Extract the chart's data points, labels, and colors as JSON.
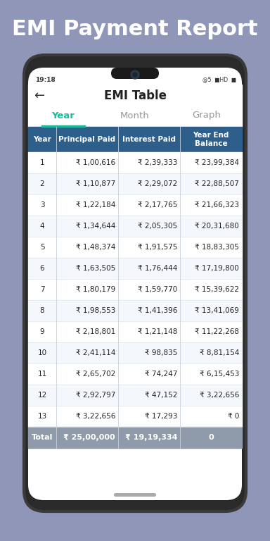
{
  "title": "EMI Payment Report",
  "title_color": "#ffffff",
  "title_fontsize": 22,
  "bg_color": "#9096b8",
  "status_bar_time": "19:18",
  "app_title": "EMI Table",
  "tabs": [
    "Year",
    "Month",
    "Graph"
  ],
  "active_tab": "Year",
  "active_tab_color": "#1abc9c",
  "inactive_tab_color": "#999999",
  "header_bg": "#2e5f8a",
  "header_text_color": "#ffffff",
  "header_labels": [
    "Year",
    "Principal Paid",
    "Interest Paid",
    "Year End\nBalance"
  ],
  "row_bg_even": "#ffffff",
  "row_bg_odd": "#f4f7fb",
  "row_text_color": "#222222",
  "total_bg": "#8f9baa",
  "total_text_color": "#ffffff",
  "table_data": [
    [
      "1",
      "₹ 1,00,616",
      "₹ 2,39,333",
      "₹ 23,99,384"
    ],
    [
      "2",
      "₹ 1,10,877",
      "₹ 2,29,072",
      "₹ 22,88,507"
    ],
    [
      "3",
      "₹ 1,22,184",
      "₹ 2,17,765",
      "₹ 21,66,323"
    ],
    [
      "4",
      "₹ 1,34,644",
      "₹ 2,05,305",
      "₹ 20,31,680"
    ],
    [
      "5",
      "₹ 1,48,374",
      "₹ 1,91,575",
      "₹ 18,83,305"
    ],
    [
      "6",
      "₹ 1,63,505",
      "₹ 1,76,444",
      "₹ 17,19,800"
    ],
    [
      "7",
      "₹ 1,80,179",
      "₹ 1,59,770",
      "₹ 15,39,622"
    ],
    [
      "8",
      "₹ 1,98,553",
      "₹ 1,41,396",
      "₹ 13,41,069"
    ],
    [
      "9",
      "₹ 2,18,801",
      "₹ 1,21,148",
      "₹ 11,22,268"
    ],
    [
      "10",
      "₹ 2,41,114",
      "₹ 98,835",
      "₹ 8,81,154"
    ],
    [
      "11",
      "₹ 2,65,702",
      "₹ 74,247",
      "₹ 6,15,453"
    ],
    [
      "12",
      "₹ 2,92,797",
      "₹ 47,152",
      "₹ 3,22,656"
    ],
    [
      "13",
      "₹ 3,22,656",
      "₹ 17,293",
      "₹ 0"
    ]
  ],
  "total_row": [
    "Total",
    "₹ 25,00,000",
    "₹ 19,19,334",
    "0"
  ]
}
